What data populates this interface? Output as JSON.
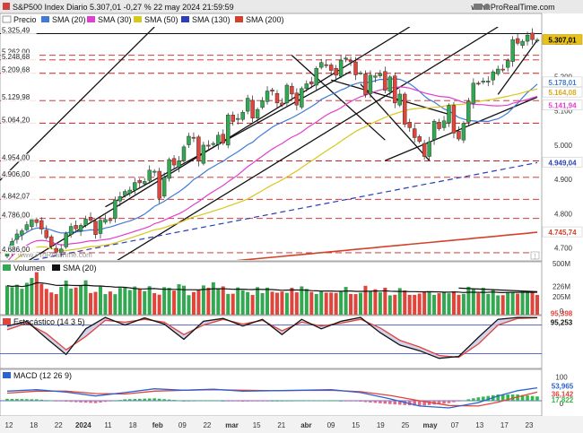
{
  "header": {
    "title": "S&P500 Index Diario 5.307,01 -0,27 % 22 may 2024 21:59:59",
    "url": "www.ProRealTime.com"
  },
  "colors": {
    "up": "#33a852",
    "down": "#e0443a",
    "sma20": "#3f7bd6",
    "sma30": "#e040d0",
    "sma50": "#d8c81c",
    "sma130": "#2a3fb8",
    "sma200": "#d2422a",
    "hline": "#cc1e1e",
    "stoK": "#111111",
    "stoD": "#e0443a",
    "macd": "#2a62d4",
    "signal": "#e0443a",
    "hist": "#33b84a"
  },
  "main_panel": {
    "legend": [
      {
        "label": "Precio",
        "color": "#ffffff"
      },
      {
        "label": "SMA (20)",
        "color": "#3f7bd6"
      },
      {
        "label": "SMA (30)",
        "color": "#e040d0"
      },
      {
        "label": "SMA (50)",
        "color": "#d8c81c"
      },
      {
        "label": "SMA (130)",
        "color": "#2a3fb8"
      },
      {
        "label": "SMA (200)",
        "color": "#d2422a"
      }
    ],
    "level_labels": [
      "5.325,49",
      "5.262,00",
      "5.248,68",
      "5.209,68",
      "5.129,98",
      "5.064,20",
      "4.954,00",
      "4.906,00",
      "4.842,07",
      "4.786,00",
      "4.686,00"
    ],
    "ticks": [
      "5.300",
      "5.200",
      "5.100",
      "5.000",
      "4.900",
      "4.800",
      "4.700"
    ],
    "tags": [
      {
        "text": "5.307,01",
        "bg": "#e8c21a",
        "fg": "#000000"
      },
      {
        "text": "5.178,01",
        "bg": "#ffffff",
        "fg": "#3f7bd6"
      },
      {
        "text": "5.164,08",
        "bg": "#ffffff",
        "fg": "#d8a81c"
      },
      {
        "text": "5.141,94",
        "bg": "#ffffff",
        "fg": "#e040d0"
      },
      {
        "text": "4.949,04",
        "bg": "#ffffff",
        "fg": "#2a3fb8"
      },
      {
        "text": "4.745,74",
        "bg": "#ffffff",
        "fg": "#d2422a"
      }
    ],
    "watermark": "www.ProRealTime.com"
  },
  "volume_panel": {
    "legend": [
      {
        "label": "Volumen",
        "color": "#33a852"
      },
      {
        "label": "SMA (20)",
        "color": "#111111"
      }
    ],
    "ticks": [
      "500M",
      "226M",
      "205M",
      "0"
    ]
  },
  "stoch_panel": {
    "legend": [
      {
        "label": "Estocástico (14 3 5)",
        "color": "#e0443a"
      }
    ],
    "tags": [
      {
        "text": "95,398",
        "fg": "#e0443a"
      },
      {
        "text": "95,253",
        "fg": "#111111"
      }
    ]
  },
  "macd_panel": {
    "legend": [
      {
        "label": "MACD (12 26 9)",
        "color": "#2a62d4"
      }
    ],
    "ticks": [
      "100",
      "0"
    ],
    "tags": [
      {
        "text": "53,965",
        "fg": "#2a62d4"
      },
      {
        "text": "36,142",
        "fg": "#e0443a"
      },
      {
        "text": "17,822",
        "fg": "#33b84a"
      }
    ]
  },
  "x_axis": {
    "labels": [
      {
        "text": "12",
        "bold": false
      },
      {
        "text": "18",
        "bold": false
      },
      {
        "text": "22",
        "bold": false
      },
      {
        "text": "2024",
        "bold": true
      },
      {
        "text": "11",
        "bold": false
      },
      {
        "text": "18",
        "bold": false
      },
      {
        "text": "feb",
        "bold": true
      },
      {
        "text": "09",
        "bold": false
      },
      {
        "text": "22",
        "bold": false
      },
      {
        "text": "mar",
        "bold": true
      },
      {
        "text": "15",
        "bold": false
      },
      {
        "text": "21",
        "bold": false
      },
      {
        "text": "abr",
        "bold": true
      },
      {
        "text": "09",
        "bold": false
      },
      {
        "text": "15",
        "bold": false
      },
      {
        "text": "19",
        "bold": false
      },
      {
        "text": "25",
        "bold": false
      },
      {
        "text": "may",
        "bold": true
      },
      {
        "text": "07",
        "bold": false
      },
      {
        "text": "13",
        "bold": false
      },
      {
        "text": "17",
        "bold": false
      },
      {
        "text": "23",
        "bold": false
      }
    ]
  },
  "chart_data": [
    {
      "type": "candlestick",
      "title": "S&P500 Index Diario",
      "y_ticks": [
        5300,
        5200,
        5100,
        5000,
        4900,
        4800,
        4700
      ],
      "ylim": [
        4665,
        5345
      ],
      "horizontal_levels": [
        5325.49,
        5262.0,
        5248.68,
        5209.68,
        5129.98,
        5064.2,
        4954.0,
        4906.0,
        4842.07,
        4786.0,
        4686.0
      ],
      "close": [
        4686,
        4719,
        4741,
        4750,
        4768,
        4783,
        4774,
        4755,
        4730,
        4705,
        4688,
        4697,
        4742,
        4763,
        4756,
        4766,
        4784,
        4781,
        4739,
        4781,
        4783,
        4780,
        4840,
        4850,
        4865,
        4869,
        4891,
        4890,
        4894,
        4927,
        4924,
        4845,
        4906,
        4958,
        4942,
        4954,
        4995,
        5026,
        5021,
        4953,
        5000,
        4997,
        5005,
        5029,
        5006,
        5088,
        5069,
        5078,
        5096,
        5137,
        5079,
        5104,
        5130,
        5158,
        5157,
        5123,
        5117,
        5175,
        5149,
        5117,
        5165,
        5179,
        5178,
        5224,
        5241,
        5234,
        5218,
        5204,
        5248,
        5254,
        5243,
        5205,
        5211,
        5147,
        5204,
        5202,
        5209,
        5160,
        5199,
        5123,
        5149,
        5061,
        5051,
        5022,
        5011,
        4967,
        5010,
        5070,
        5048,
        5071,
        5116,
        5035,
        5018,
        5064,
        5128,
        5181,
        5180,
        5187,
        5187,
        5214,
        5222,
        5221,
        5247,
        5308,
        5297,
        5303,
        5321,
        5308,
        5307
      ],
      "sma_lines": [
        {
          "name": "SMA (20)",
          "start": 4700,
          "end": 5178.01
        },
        {
          "name": "SMA (30)",
          "start": 4660,
          "end": 5141.94
        },
        {
          "name": "SMA (50)",
          "start": 4640,
          "end": 5164.08
        },
        {
          "name": "SMA (130)",
          "start": 4650,
          "end": 4949.04
        },
        {
          "name": "SMA (200)",
          "start": 4600,
          "end": 4745.74
        }
      ]
    },
    {
      "type": "bar",
      "title": "Volumen",
      "y_ticks": [
        "500M",
        "226M",
        "205M",
        "0"
      ],
      "ylim": [
        0,
        520
      ],
      "values": [
        301,
        284,
        310,
        268,
        330,
        380,
        440,
        318,
        267,
        230,
        213,
        287,
        353,
        270,
        281,
        300,
        356,
        224,
        236,
        292,
        213,
        240,
        212,
        277,
        281,
        255,
        292,
        269,
        244,
        295,
        223,
        207,
        285,
        278,
        249,
        315,
        300,
        202,
        234,
        251,
        303,
        279,
        335,
        266,
        293,
        215,
        217,
        282,
        252,
        234,
        204,
        285,
        223,
        280,
        238,
        227,
        240,
        226,
        278,
        231,
        293,
        266,
        235,
        214,
        246,
        228,
        229,
        224,
        240,
        287,
        215,
        213,
        227,
        299,
        241,
        263,
        231,
        279,
        200,
        206,
        275,
        251,
        205,
        205,
        218,
        235,
        233,
        205,
        222,
        234,
        221,
        242,
        206,
        215,
        289,
        270,
        222,
        279,
        215,
        257,
        200,
        202,
        234,
        232,
        218,
        239,
        232,
        230,
        205
      ],
      "sma_end": 226
    },
    {
      "type": "line",
      "title": "Estocástico (14 3 5)",
      "ylim": [
        0,
        100
      ],
      "reference_levels": [
        20,
        80
      ],
      "series": [
        {
          "name": "Estocástico (14 3 5)",
          "x": [
            0,
            4,
            8,
            12,
            16,
            20,
            24,
            28,
            32,
            36,
            40,
            44,
            48,
            52,
            56,
            60,
            64,
            68,
            72,
            76,
            80,
            84,
            88,
            92,
            96,
            100,
            104,
            108
          ],
          "values": [
            78,
            88,
            52,
            18,
            72,
            96,
            80,
            95,
            82,
            50,
            88,
            94,
            78,
            92,
            60,
            92,
            72,
            88,
            96,
            64,
            38,
            26,
            10,
            14,
            54,
            92,
            96,
            95.4
          ]
        },
        {
          "x": [
            0,
            4,
            8,
            12,
            16,
            20,
            24,
            28,
            32,
            36,
            40,
            44,
            48,
            52,
            56,
            60,
            64,
            68,
            72,
            76,
            80,
            84,
            88,
            92,
            96,
            100,
            104,
            108
          ],
          "values": [
            70,
            84,
            62,
            28,
            56,
            90,
            86,
            92,
            86,
            60,
            80,
            92,
            82,
            90,
            68,
            86,
            78,
            84,
            92,
            74,
            48,
            34,
            16,
            12,
            40,
            80,
            94,
            95.3
          ]
        }
      ]
    },
    {
      "type": "line",
      "title": "MACD (12 26 9)",
      "y_ticks": [
        100,
        0
      ],
      "ylim": [
        -45,
        120
      ],
      "series": [
        {
          "name": "MACD (12 26 9)",
          "x": [
            0,
            6,
            12,
            18,
            24,
            30,
            36,
            42,
            48,
            54,
            60,
            66,
            72,
            78,
            84,
            90,
            96,
            100,
            104,
            108
          ],
          "values": [
            40,
            46,
            36,
            20,
            34,
            50,
            44,
            48,
            40,
            42,
            44,
            46,
            34,
            8,
            -22,
            -30,
            -8,
            20,
            42,
            53.965
          ]
        },
        {
          "x": [
            0,
            6,
            12,
            18,
            24,
            30,
            36,
            42,
            48,
            54,
            60,
            66,
            72,
            78,
            84,
            90,
            96,
            100,
            104,
            108
          ],
          "values": [
            32,
            40,
            40,
            30,
            28,
            40,
            44,
            46,
            44,
            42,
            43,
            44,
            38,
            22,
            0,
            -20,
            -22,
            -6,
            16,
            36.142
          ]
        }
      ]
    }
  ]
}
